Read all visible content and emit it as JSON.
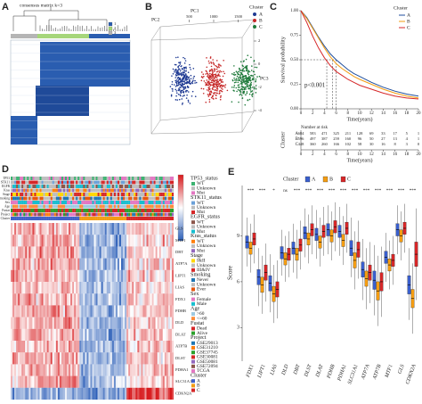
{
  "chart_data": [
    {
      "type": "consensus",
      "panel_label": "A",
      "title": "consensus matrix k=3",
      "legend_labels": [
        "1",
        "2",
        "3"
      ],
      "colors": [
        "#2a5db0",
        "#a6d67a",
        "#b5b5b5"
      ]
    },
    {
      "type": "scatter3d",
      "panel_label": "B",
      "axis_labels": {
        "x": "PC1",
        "y": "PC2",
        "z": "PC3"
      },
      "xlim": [
        0,
        2000
      ],
      "xticks": [
        500,
        1000,
        1500
      ],
      "zlim": [
        -5,
        3
      ],
      "zticks": [
        2,
        0,
        -2,
        -4
      ],
      "legend_title": "Cluster",
      "series": [
        {
          "name": "A",
          "color": "#1f3a93"
        },
        {
          "name": "B",
          "color": "#c62828"
        },
        {
          "name": "C",
          "color": "#1e7a3a"
        }
      ]
    },
    {
      "type": "line",
      "panel_label": "C",
      "ylabel": "Survival probability",
      "xlabel": "Time(years)",
      "xlim": [
        0,
        20
      ],
      "xticks": [
        0,
        2,
        4,
        6,
        8,
        10,
        12,
        14,
        16,
        18,
        20
      ],
      "ylim": [
        0,
        1
      ],
      "yticks": [
        {
          "value": 0,
          "label": "0.00"
        },
        {
          "value": 0.25,
          "label": "0.25"
        },
        {
          "value": 0.5,
          "label": "0.50"
        },
        {
          "value": 0.75,
          "label": "0.75"
        },
        {
          "value": 1,
          "label": "1.00"
        }
      ],
      "legend_title": "Cluster",
      "annotation": "p<0.001",
      "median_line": {
        "y": 0.5,
        "x": [
          6,
          5.4,
          4.4
        ]
      },
      "series": [
        {
          "name": "A",
          "color": "#1f4e9c",
          "x": [
            0,
            1,
            2,
            3,
            4,
            5,
            6,
            7,
            8,
            9,
            10,
            12,
            14,
            16,
            18,
            20
          ],
          "values": [
            1,
            0.93,
            0.83,
            0.73,
            0.64,
            0.56,
            0.5,
            0.45,
            0.4,
            0.36,
            0.33,
            0.27,
            0.22,
            0.18,
            0.15,
            0.13
          ]
        },
        {
          "name": "B",
          "color": "#f39c12",
          "x": [
            0,
            1,
            2,
            3,
            4,
            5,
            6,
            7,
            8,
            9,
            10,
            12,
            14,
            16,
            18,
            20
          ],
          "values": [
            1,
            0.92,
            0.82,
            0.72,
            0.62,
            0.53,
            0.46,
            0.41,
            0.37,
            0.33,
            0.3,
            0.25,
            0.2,
            0.16,
            0.13,
            0.11
          ]
        },
        {
          "name": "C",
          "color": "#d62728",
          "x": [
            0,
            1,
            2,
            3,
            4,
            5,
            6,
            7,
            8,
            9,
            10,
            12,
            14,
            16,
            18,
            20
          ],
          "values": [
            1,
            0.88,
            0.74,
            0.62,
            0.52,
            0.44,
            0.38,
            0.34,
            0.3,
            0.27,
            0.24,
            0.2,
            0.16,
            0.13,
            0.11,
            0.1
          ]
        }
      ]
    },
    {
      "type": "risk_table",
      "title": "Number at risk",
      "ylabel": "Cluster",
      "xlabel": "Time(years)",
      "xlim": [
        0,
        20
      ],
      "xticks": [
        0,
        2,
        4,
        6,
        8,
        10,
        12,
        14,
        16,
        18,
        20
      ],
      "rows": [
        {
          "name": "A",
          "color": "#1f4e9c",
          "values": [
            684,
            583,
            471,
            325,
            211,
            128,
            69,
            33,
            17,
            5,
            1
          ]
        },
        {
          "name": "B",
          "color": "#f39c12",
          "values": [
            596,
            497,
            387,
            259,
            160,
            96,
            50,
            27,
            13,
            4,
            1
          ]
        },
        {
          "name": "C",
          "color": "#d62728",
          "values": [
            448,
            360,
            260,
            166,
            102,
            58,
            30,
            16,
            8,
            3,
            0
          ]
        }
      ]
    },
    {
      "type": "heatmap",
      "panel_label": "D",
      "track_labels": [
        "TP53",
        "STK11",
        "EGFR",
        "Kras",
        "Stage",
        "Smoking",
        "Sex",
        "Age",
        "Fustat",
        "Project",
        "Cluster"
      ],
      "genes": [
        "GLS",
        "MTF1",
        "DBT",
        "ATP7A",
        "LIPT1",
        "LIAS",
        "FDX1",
        "PDHB",
        "DLD",
        "DLAT",
        "ATP7B",
        "DLST",
        "PDHA1",
        "SLC31A1",
        "CDKN2A"
      ],
      "legend": [
        {
          "title": "TP53_status",
          "items": [
            "WT",
            "Unknown",
            "Mut"
          ],
          "colors": [
            "#3cb371",
            "#bdbdbd",
            "#e377c2"
          ]
        },
        {
          "title": "STK11_status",
          "items": [
            "WT",
            "Unknown",
            "Mut"
          ],
          "colors": [
            "#6aa0d8",
            "#bdbdbd",
            "#d62728"
          ]
        },
        {
          "title": "EGFR_status",
          "items": [
            "WT",
            "Unknown",
            "Mut"
          ],
          "colors": [
            "#8c564b",
            "#bdbdbd",
            "#17becf"
          ]
        },
        {
          "title": "Kras_status",
          "items": [
            "WT",
            "Unknown",
            "Mut"
          ],
          "colors": [
            "#ff7f0e",
            "#bdbdbd",
            "#9467bd"
          ]
        },
        {
          "title": "Stage",
          "items": [
            "I&II",
            "Unknown",
            "III&IV"
          ],
          "colors": [
            "#ffd700",
            "#bdbdbd",
            "#d62728"
          ]
        },
        {
          "title": "Smoking",
          "items": [
            "Never",
            "Unknown",
            "Ever"
          ],
          "colors": [
            "#1f77b4",
            "#bdbdbd",
            "#e6550d"
          ]
        },
        {
          "title": "Sex",
          "items": [
            "Female",
            "Male"
          ],
          "colors": [
            "#e377c2",
            "#17becf"
          ]
        },
        {
          "title": "Age",
          "items": [
            ">60",
            "<=60"
          ],
          "colors": [
            "#9ecae1",
            "#fd8d3c"
          ]
        },
        {
          "title": "Fustat",
          "items": [
            "Dead",
            "Alive"
          ],
          "colors": [
            "#d62728",
            "#2ca02c"
          ]
        },
        {
          "title": "Project",
          "items": [
            "GSE29013",
            "GSE31210",
            "GSE37745",
            "GSE30081",
            "GSE50081",
            "GSE72094",
            "TCGA"
          ],
          "colors": [
            "#1f77b4",
            "#ff7f0e",
            "#2ca02c",
            "#d62728",
            "#9467bd",
            "#8c564b",
            "#e377c2"
          ]
        },
        {
          "title": "Cluster",
          "items": [
            "A",
            "B",
            "C"
          ],
          "colors": [
            "#4060c8",
            "#f39c12",
            "#d62728"
          ]
        }
      ]
    },
    {
      "type": "box",
      "panel_label": "E",
      "ylabel": "Score",
      "legend_title": "Cluster",
      "ylim": [
        0.8,
        12.3
      ],
      "yticks": [
        3,
        6,
        9
      ],
      "categories": [
        "FDX1",
        "LIPT1",
        "LIAS",
        "DLD",
        "DBT",
        "DLST",
        "DLAT",
        "PDHB",
        "PDHA1",
        "SLC31A1",
        "ATP7A",
        "ATP7B",
        "MTF1",
        "GLS",
        "CDKN2A"
      ],
      "significance": [
        "***",
        "***",
        "*",
        "ns",
        "***",
        "***",
        "***",
        "***",
        "***",
        "***",
        "***",
        "***",
        "***",
        "***",
        "***"
      ],
      "series": [
        {
          "name": "A",
          "color": "#3a5fcd",
          "min": [
            7.0,
            4.4,
            4.0,
            6.4,
            6.6,
            7.6,
            7.5,
            7.8,
            7.7,
            6.3,
            4.8,
            3.8,
            6.0,
            7.8,
            3.5
          ],
          "q1": [
            8.2,
            5.8,
            5.4,
            7.5,
            7.8,
            8.8,
            8.7,
            9.0,
            8.9,
            7.7,
            6.3,
            5.5,
            7.2,
            9.0,
            5.2
          ],
          "median": [
            8.6,
            6.3,
            5.9,
            7.9,
            8.2,
            9.2,
            9.1,
            9.4,
            9.3,
            8.2,
            6.8,
            6.1,
            7.6,
            9.4,
            5.8
          ],
          "q3": [
            9.0,
            6.8,
            6.4,
            8.3,
            8.6,
            9.6,
            9.5,
            9.8,
            9.7,
            8.7,
            7.3,
            6.7,
            8.0,
            9.8,
            6.4
          ],
          "max": [
            10.2,
            8.2,
            7.8,
            9.4,
            9.8,
            10.8,
            10.7,
            11.0,
            10.9,
            10.2,
            8.8,
            8.4,
            9.2,
            11.0,
            8.2
          ]
        },
        {
          "name": "B",
          "color": "#f39c12",
          "min": [
            6.6,
            3.9,
            3.3,
            6.0,
            6.2,
            7.2,
            7.0,
            7.4,
            7.1,
            5.5,
            4.2,
            3.1,
            5.5,
            7.4,
            2.6
          ],
          "q1": [
            7.8,
            5.3,
            4.7,
            7.1,
            7.4,
            8.4,
            8.2,
            8.6,
            8.3,
            6.9,
            5.7,
            4.8,
            6.7,
            8.6,
            4.3
          ],
          "median": [
            8.2,
            5.8,
            5.2,
            7.5,
            7.8,
            8.8,
            8.6,
            9.0,
            8.7,
            7.4,
            6.2,
            5.4,
            7.1,
            9.0,
            4.9
          ],
          "q3": [
            8.6,
            6.3,
            5.7,
            7.9,
            8.2,
            9.2,
            9.0,
            9.4,
            9.1,
            7.9,
            6.7,
            6.0,
            7.5,
            9.4,
            5.5
          ],
          "max": [
            9.8,
            7.7,
            7.1,
            9.0,
            9.4,
            10.4,
            10.2,
            10.6,
            10.3,
            9.3,
            8.2,
            7.7,
            8.7,
            10.6,
            7.2
          ]
        },
        {
          "name": "C",
          "color": "#d62728",
          "min": [
            7.2,
            4.7,
            3.6,
            6.3,
            6.8,
            7.8,
            7.7,
            8.0,
            7.9,
            6.2,
            4.6,
            3.7,
            5.8,
            7.9,
            4.8
          ],
          "q1": [
            8.4,
            6.1,
            5.0,
            7.4,
            8.0,
            9.0,
            8.9,
            9.2,
            9.1,
            7.6,
            6.1,
            5.4,
            7.0,
            9.1,
            7.0
          ],
          "median": [
            8.8,
            6.6,
            5.5,
            7.8,
            8.4,
            9.4,
            9.3,
            9.6,
            9.5,
            8.1,
            6.6,
            6.0,
            7.4,
            9.5,
            7.8
          ],
          "q3": [
            9.2,
            7.1,
            6.0,
            8.2,
            8.8,
            9.8,
            9.7,
            10.0,
            9.9,
            8.6,
            7.1,
            6.6,
            7.8,
            9.9,
            8.6
          ],
          "max": [
            10.4,
            8.5,
            7.4,
            9.3,
            10.0,
            11.0,
            10.9,
            11.2,
            11.1,
            10.0,
            8.6,
            8.3,
            9.0,
            11.1,
            10.8
          ]
        }
      ]
    }
  ]
}
